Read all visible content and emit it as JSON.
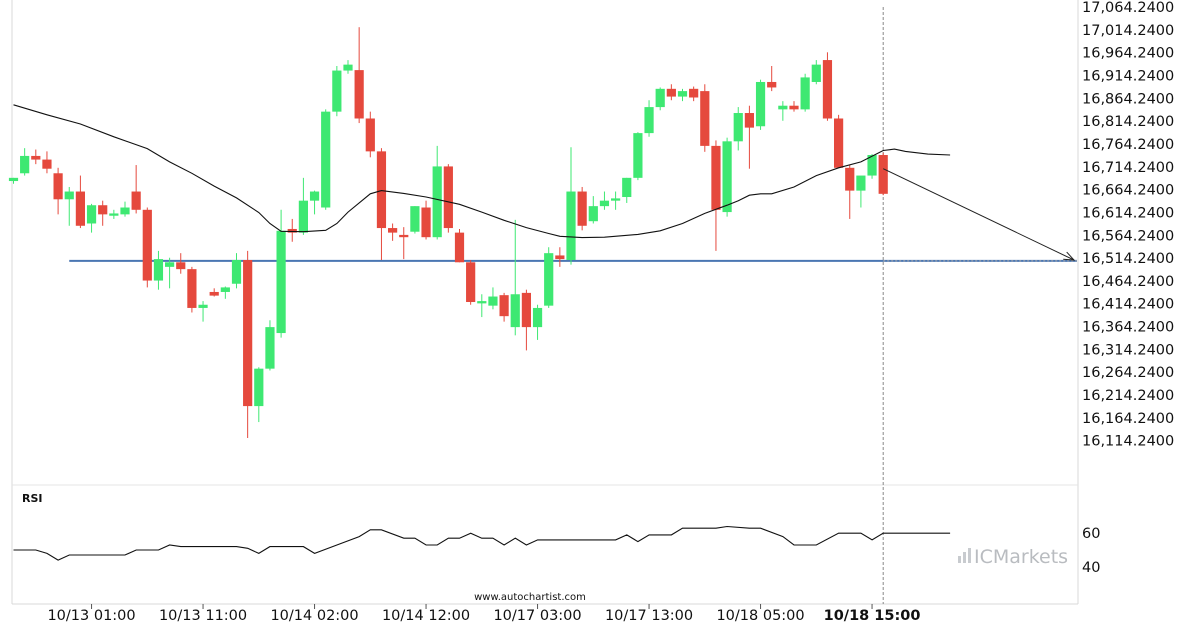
{
  "chart_data": {
    "type": "candlestick",
    "y_axis": {
      "range": [
        16064.24,
        17064.24
      ],
      "ticks": [
        "17,064.2400",
        "17,014.2400",
        "16,964.2400",
        "16,914.2400",
        "16,864.2400",
        "16,814.2400",
        "16,764.2400",
        "16,714.2400",
        "16,664.2400",
        "16,614.2400",
        "16,564.2400",
        "16,514.2400",
        "16,464.2400",
        "16,414.2400",
        "16,364.2400",
        "16,314.2400",
        "16,264.2400",
        "16,214.2400",
        "16,164.2400",
        "16,114.2400"
      ]
    },
    "x_axis": {
      "ticks": [
        {
          "label": "10/13 01:00",
          "index": 7,
          "bold": false
        },
        {
          "label": "10/13 11:00",
          "index": 17,
          "bold": false
        },
        {
          "label": "10/14 02:00",
          "index": 27,
          "bold": false
        },
        {
          "label": "10/14 12:00",
          "index": 37,
          "bold": false
        },
        {
          "label": "10/17 03:00",
          "index": 47,
          "bold": false
        },
        {
          "label": "10/17 13:00",
          "index": 57,
          "bold": false
        },
        {
          "label": "10/18 05:00",
          "index": 67,
          "bold": false
        },
        {
          "label": "10/18 15:00",
          "index": 77,
          "bold": true
        }
      ]
    },
    "candles": [
      {
        "o": 16683,
        "h": 16690,
        "l": 16677,
        "c": 16690
      },
      {
        "o": 16700,
        "h": 16755,
        "l": 16695,
        "c": 16738
      },
      {
        "o": 16738,
        "h": 16752,
        "l": 16720,
        "c": 16730
      },
      {
        "o": 16730,
        "h": 16748,
        "l": 16700,
        "c": 16710
      },
      {
        "o": 16700,
        "h": 16712,
        "l": 16610,
        "c": 16643
      },
      {
        "o": 16643,
        "h": 16670,
        "l": 16585,
        "c": 16660
      },
      {
        "o": 16660,
        "h": 16695,
        "l": 16580,
        "c": 16585
      },
      {
        "o": 16590,
        "h": 16633,
        "l": 16570,
        "c": 16630
      },
      {
        "o": 16630,
        "h": 16640,
        "l": 16585,
        "c": 16610
      },
      {
        "o": 16607,
        "h": 16620,
        "l": 16600,
        "c": 16612
      },
      {
        "o": 16610,
        "h": 16638,
        "l": 16605,
        "c": 16625
      },
      {
        "o": 16660,
        "h": 16718,
        "l": 16612,
        "c": 16620
      },
      {
        "o": 16620,
        "h": 16625,
        "l": 16450,
        "c": 16465
      },
      {
        "o": 16465,
        "h": 16530,
        "l": 16445,
        "c": 16512
      },
      {
        "o": 16495,
        "h": 16515,
        "l": 16448,
        "c": 16505
      },
      {
        "o": 16505,
        "h": 16525,
        "l": 16480,
        "c": 16490
      },
      {
        "o": 16490,
        "h": 16495,
        "l": 16395,
        "c": 16405
      },
      {
        "o": 16405,
        "h": 16420,
        "l": 16375,
        "c": 16412
      },
      {
        "o": 16440,
        "h": 16448,
        "l": 16430,
        "c": 16432
      },
      {
        "o": 16440,
        "h": 16452,
        "l": 16425,
        "c": 16450
      },
      {
        "o": 16458,
        "h": 16525,
        "l": 16448,
        "c": 16510
      },
      {
        "o": 16510,
        "h": 16530,
        "l": 16120,
        "c": 16190
      },
      {
        "o": 16190,
        "h": 16275,
        "l": 16155,
        "c": 16272
      },
      {
        "o": 16272,
        "h": 16378,
        "l": 16268,
        "c": 16363
      },
      {
        "o": 16350,
        "h": 16620,
        "l": 16340,
        "c": 16574
      },
      {
        "o": 16578,
        "h": 16600,
        "l": 16550,
        "c": 16570
      },
      {
        "o": 16570,
        "h": 16690,
        "l": 16565,
        "c": 16640
      },
      {
        "o": 16640,
        "h": 16662,
        "l": 16610,
        "c": 16660
      },
      {
        "o": 16625,
        "h": 16840,
        "l": 16620,
        "c": 16835
      },
      {
        "o": 16835,
        "h": 16935,
        "l": 16825,
        "c": 16925
      },
      {
        "o": 16925,
        "h": 16948,
        "l": 16918,
        "c": 16938
      },
      {
        "o": 16926,
        "h": 17020,
        "l": 16810,
        "c": 16820
      },
      {
        "o": 16820,
        "h": 16835,
        "l": 16735,
        "c": 16748
      },
      {
        "o": 16748,
        "h": 16755,
        "l": 16510,
        "c": 16580
      },
      {
        "o": 16580,
        "h": 16590,
        "l": 16552,
        "c": 16570
      },
      {
        "o": 16565,
        "h": 16582,
        "l": 16512,
        "c": 16560
      },
      {
        "o": 16572,
        "h": 16628,
        "l": 16568,
        "c": 16628
      },
      {
        "o": 16625,
        "h": 16640,
        "l": 16555,
        "c": 16560
      },
      {
        "o": 16560,
        "h": 16760,
        "l": 16555,
        "c": 16715
      },
      {
        "o": 16715,
        "h": 16720,
        "l": 16570,
        "c": 16580
      },
      {
        "o": 16570,
        "h": 16578,
        "l": 16505,
        "c": 16505
      },
      {
        "o": 16505,
        "h": 16510,
        "l": 16412,
        "c": 16418
      },
      {
        "o": 16415,
        "h": 16435,
        "l": 16385,
        "c": 16420
      },
      {
        "o": 16410,
        "h": 16450,
        "l": 16402,
        "c": 16430
      },
      {
        "o": 16433,
        "h": 16438,
        "l": 16375,
        "c": 16387
      },
      {
        "o": 16363,
        "h": 16598,
        "l": 16345,
        "c": 16435
      },
      {
        "o": 16438,
        "h": 16445,
        "l": 16312,
        "c": 16363
      },
      {
        "o": 16363,
        "h": 16412,
        "l": 16335,
        "c": 16405
      },
      {
        "o": 16410,
        "h": 16538,
        "l": 16405,
        "c": 16525
      },
      {
        "o": 16520,
        "h": 16538,
        "l": 16495,
        "c": 16512
      },
      {
        "o": 16510,
        "h": 16757,
        "l": 16500,
        "c": 16660
      },
      {
        "o": 16660,
        "h": 16670,
        "l": 16575,
        "c": 16585
      },
      {
        "o": 16595,
        "h": 16650,
        "l": 16590,
        "c": 16628
      },
      {
        "o": 16628,
        "h": 16660,
        "l": 16620,
        "c": 16640
      },
      {
        "o": 16640,
        "h": 16660,
        "l": 16620,
        "c": 16645
      },
      {
        "o": 16648,
        "h": 16690,
        "l": 16635,
        "c": 16690
      },
      {
        "o": 16690,
        "h": 16790,
        "l": 16685,
        "c": 16788
      },
      {
        "o": 16788,
        "h": 16860,
        "l": 16780,
        "c": 16845
      },
      {
        "o": 16845,
        "h": 16888,
        "l": 16838,
        "c": 16885
      },
      {
        "o": 16885,
        "h": 16895,
        "l": 16860,
        "c": 16868
      },
      {
        "o": 16868,
        "h": 16885,
        "l": 16858,
        "c": 16880
      },
      {
        "o": 16885,
        "h": 16890,
        "l": 16858,
        "c": 16866
      },
      {
        "o": 16880,
        "h": 16895,
        "l": 16747,
        "c": 16760
      },
      {
        "o": 16760,
        "h": 16772,
        "l": 16530,
        "c": 16620
      },
      {
        "o": 16615,
        "h": 16778,
        "l": 16605,
        "c": 16770
      },
      {
        "o": 16770,
        "h": 16845,
        "l": 16750,
        "c": 16832
      },
      {
        "o": 16832,
        "h": 16848,
        "l": 16710,
        "c": 16800
      },
      {
        "o": 16803,
        "h": 16905,
        "l": 16795,
        "c": 16900
      },
      {
        "o": 16900,
        "h": 16935,
        "l": 16880,
        "c": 16888
      },
      {
        "o": 16840,
        "h": 16858,
        "l": 16815,
        "c": 16848
      },
      {
        "o": 16848,
        "h": 16858,
        "l": 16835,
        "c": 16840
      },
      {
        "o": 16840,
        "h": 16918,
        "l": 16835,
        "c": 16910
      },
      {
        "o": 16900,
        "h": 16948,
        "l": 16895,
        "c": 16938
      },
      {
        "o": 16948,
        "h": 16965,
        "l": 16815,
        "c": 16820
      },
      {
        "o": 16820,
        "h": 16828,
        "l": 16712,
        "c": 16712
      },
      {
        "o": 16712,
        "h": 16718,
        "l": 16600,
        "c": 16662
      },
      {
        "o": 16662,
        "h": 16690,
        "l": 16625,
        "c": 16695
      },
      {
        "o": 16695,
        "h": 16742,
        "l": 16688,
        "c": 16740
      },
      {
        "o": 16740,
        "h": 16745,
        "l": 16652,
        "c": 16655
      }
    ],
    "moving_average": [
      [
        0,
        16850
      ],
      [
        3,
        16828
      ],
      [
        6,
        16808
      ],
      [
        9,
        16780
      ],
      [
        12,
        16754
      ],
      [
        14,
        16725
      ],
      [
        16,
        16700
      ],
      [
        18,
        16672
      ],
      [
        20,
        16646
      ],
      [
        22,
        16614
      ],
      [
        23,
        16590
      ],
      [
        24,
        16573
      ],
      [
        26,
        16572
      ],
      [
        28,
        16575
      ],
      [
        29,
        16590
      ],
      [
        30,
        16615
      ],
      [
        32,
        16655
      ],
      [
        33,
        16662
      ],
      [
        35,
        16656
      ],
      [
        37,
        16648
      ],
      [
        40,
        16632
      ],
      [
        42,
        16615
      ],
      [
        44,
        16597
      ],
      [
        46,
        16581
      ],
      [
        48,
        16568
      ],
      [
        49,
        16562
      ],
      [
        51,
        16559
      ],
      [
        53,
        16560
      ],
      [
        56,
        16566
      ],
      [
        58,
        16574
      ],
      [
        60,
        16590
      ],
      [
        62,
        16612
      ],
      [
        64,
        16630
      ],
      [
        65,
        16640
      ],
      [
        66,
        16652
      ],
      [
        67,
        16655
      ],
      [
        68,
        16655
      ],
      [
        70,
        16670
      ],
      [
        72,
        16695
      ],
      [
        74,
        16712
      ],
      [
        76,
        16725
      ],
      [
        78,
        16750
      ],
      [
        79,
        16753
      ],
      [
        80,
        16748
      ],
      [
        82,
        16742
      ],
      [
        84,
        16740
      ]
    ],
    "support_line": {
      "value": 16508,
      "from_index": 5
    },
    "forecast_arrow": {
      "from": [
        78,
        16710
      ],
      "to": [
        90,
        16510
      ]
    },
    "marker_index": 78,
    "rsi": {
      "label": "RSI",
      "ticks": [
        60,
        40
      ],
      "range": [
        25,
        75
      ],
      "points": [
        [
          0,
          50
        ],
        [
          2,
          50
        ],
        [
          3,
          48
        ],
        [
          4,
          44
        ],
        [
          5,
          47
        ],
        [
          8,
          47
        ],
        [
          10,
          47
        ],
        [
          11,
          50
        ],
        [
          13,
          50
        ],
        [
          14,
          53
        ],
        [
          15,
          52
        ],
        [
          20,
          52
        ],
        [
          21,
          51
        ],
        [
          22,
          48
        ],
        [
          23,
          52
        ],
        [
          26,
          52
        ],
        [
          27,
          48
        ],
        [
          29,
          53
        ],
        [
          31,
          58
        ],
        [
          32,
          62
        ],
        [
          33,
          62
        ],
        [
          35,
          57
        ],
        [
          36,
          57
        ],
        [
          37,
          53
        ],
        [
          38,
          53
        ],
        [
          39,
          57
        ],
        [
          40,
          57
        ],
        [
          41,
          60
        ],
        [
          42,
          57
        ],
        [
          43,
          57
        ],
        [
          44,
          53
        ],
        [
          45,
          57
        ],
        [
          46,
          53
        ],
        [
          47,
          56
        ],
        [
          48,
          56
        ],
        [
          51,
          56
        ],
        [
          54,
          56
        ],
        [
          55,
          59
        ],
        [
          56,
          55
        ],
        [
          57,
          59
        ],
        [
          59,
          59
        ],
        [
          60,
          63
        ],
        [
          62,
          63
        ],
        [
          63,
          63
        ],
        [
          64,
          64
        ],
        [
          66,
          63
        ],
        [
          67,
          63
        ],
        [
          69,
          58
        ],
        [
          70,
          53
        ],
        [
          72,
          53
        ],
        [
          74,
          60
        ],
        [
          76,
          60
        ],
        [
          77,
          56
        ],
        [
          78,
          60
        ],
        [
          80,
          60
        ],
        [
          84,
          60
        ]
      ]
    }
  },
  "footer": {
    "source": "www.autochartist.com",
    "brand": "ICMarkets"
  },
  "colors": {
    "up": "#3ee872",
    "down": "#e5493d",
    "support": "#4a76b2",
    "ma": "#111111",
    "grid": "#cccccc"
  }
}
